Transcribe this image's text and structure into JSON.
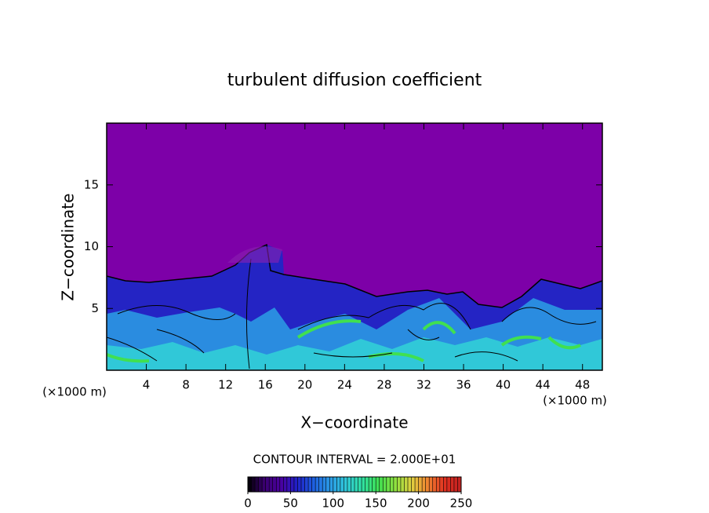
{
  "chart_data": {
    "type": "heatmap",
    "title": "turbulent diffusion coefficient",
    "xlabel": "X−coordinate",
    "ylabel": "Z−coordinate",
    "x_unit": "(×1000 m)",
    "y_unit": "(×1000 m)",
    "xlim": [
      0,
      50
    ],
    "xticks": [
      4,
      8,
      12,
      16,
      20,
      24,
      28,
      32,
      36,
      40,
      44,
      48
    ],
    "ylim": [
      0,
      20
    ],
    "yticks": [
      5,
      10,
      15
    ],
    "annotation": "CONTOUR INTERVAL = 2.000E+01",
    "clim": [
      0,
      250
    ],
    "cticks": [
      0,
      50,
      100,
      150,
      200,
      250
    ],
    "colormap": [
      "#000000",
      "#3a0070",
      "#4b00a0",
      "#2020c8",
      "#1e5ee0",
      "#2a9ae6",
      "#30c8d8",
      "#30e0a0",
      "#40e050",
      "#90e040",
      "#e0d040",
      "#f08030",
      "#e03020",
      "#c02020"
    ]
  }
}
